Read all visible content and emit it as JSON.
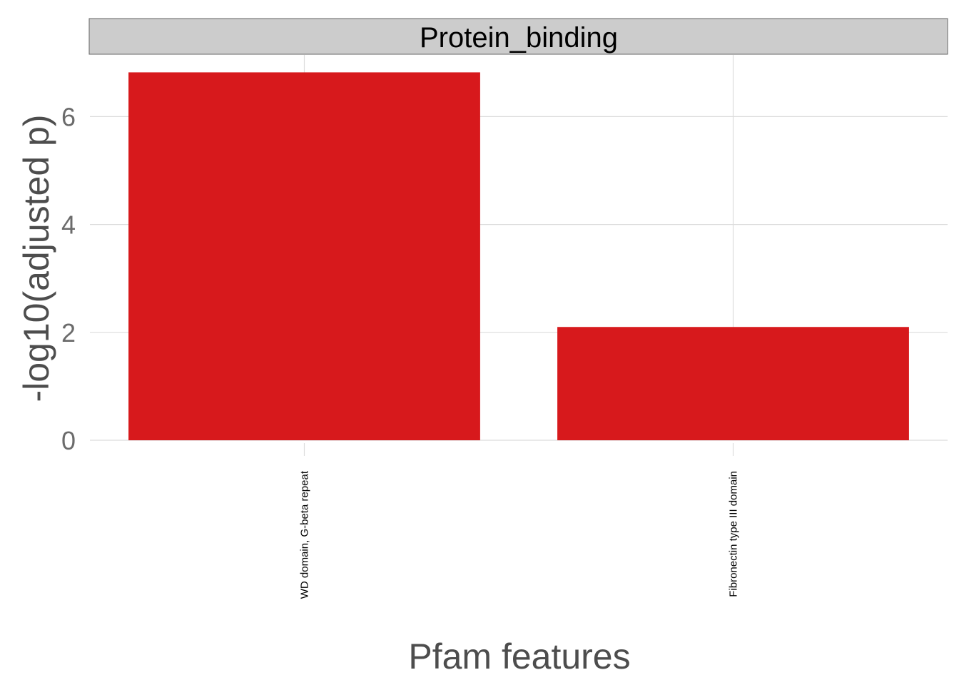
{
  "chart_data": {
    "type": "bar",
    "facet": "Protein_binding",
    "categories": [
      "WD domain, G-beta repeat",
      "Fibronectin type III domain"
    ],
    "values": [
      6.82,
      2.1
    ],
    "xlabel": "Pfam features",
    "ylabel": "-log10(adjusted p)",
    "ylim": [
      0,
      7.2
    ],
    "yticks": [
      0,
      2,
      4,
      6
    ],
    "bar_color": "#d7191c",
    "strip_fill": "#cccccc",
    "grid": true,
    "legend": "none"
  }
}
